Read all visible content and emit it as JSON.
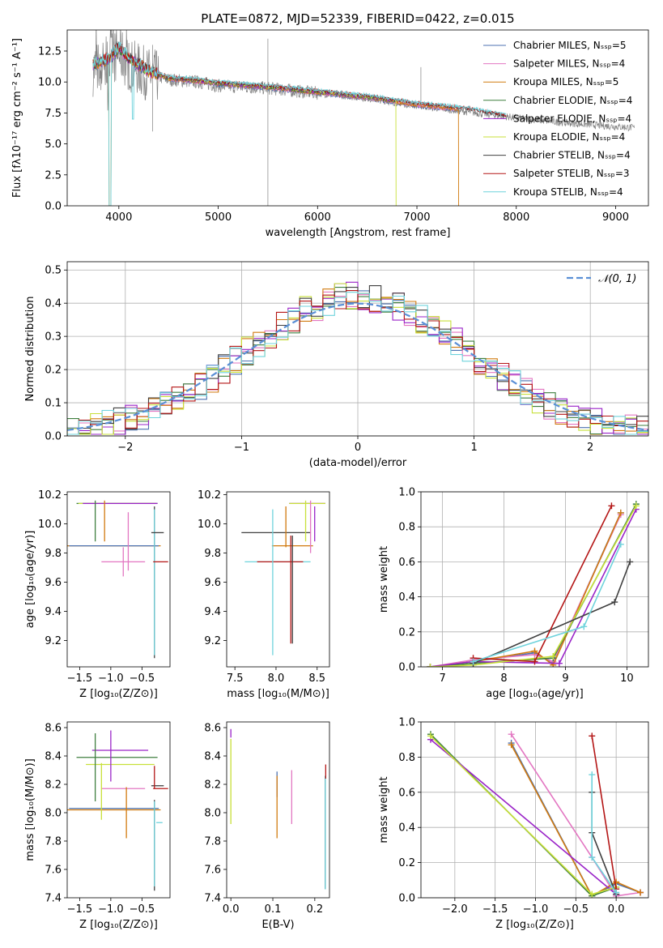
{
  "chart_data": [
    {
      "id": "spectrum",
      "type": "line",
      "title": "PLATE=0872, MJD=52339, FIBERID=0422, z=0.015",
      "xlabel": "wavelength [Angstrom, rest frame]",
      "ylabel": "Flux [fλ10⁻¹⁷ erg cm⁻² s⁻¹ A⁻¹]",
      "xlim": [
        3480,
        9330
      ],
      "ylim": [
        0,
        14.2
      ],
      "xticks": [
        "4000",
        "5000",
        "6000",
        "7000",
        "8000",
        "9000"
      ],
      "xtick_values": [
        4000,
        5000,
        6000,
        7000,
        8000,
        9000
      ],
      "yticks": [
        "0.0",
        "2.5",
        "5.0",
        "7.5",
        "10.0",
        "12.5"
      ],
      "ytick_values": [
        0,
        2.5,
        5,
        7.5,
        10,
        12.5
      ],
      "legend_position": "top-right",
      "data_color": "#808080",
      "data_trend": [
        [
          3740,
          11.0
        ],
        [
          3900,
          11.6
        ],
        [
          4000,
          12.4
        ],
        [
          4100,
          11.4
        ],
        [
          4300,
          10.6
        ],
        [
          4500,
          10.2
        ],
        [
          4800,
          10.0
        ],
        [
          5000,
          9.7
        ],
        [
          5500,
          9.5
        ],
        [
          6000,
          9.1
        ],
        [
          6500,
          8.7
        ],
        [
          7000,
          8.1
        ],
        [
          7500,
          7.6
        ],
        [
          8000,
          7.1
        ],
        [
          8500,
          6.7
        ],
        [
          9000,
          6.4
        ],
        [
          9190,
          6.3
        ]
      ],
      "model_trend": [
        [
          3740,
          11.4
        ],
        [
          3900,
          11.9
        ],
        [
          4000,
          12.8
        ],
        [
          4100,
          11.9
        ],
        [
          4300,
          10.9
        ],
        [
          4500,
          10.3
        ],
        [
          4800,
          10.1
        ],
        [
          5000,
          9.9
        ],
        [
          5500,
          9.6
        ],
        [
          6000,
          9.2
        ],
        [
          6500,
          8.8
        ],
        [
          7000,
          8.2
        ],
        [
          7500,
          7.8
        ],
        [
          7900,
          7.2
        ]
      ],
      "series": [
        {
          "name": "Chabrier MILES, Nₛₛₚ=5",
          "color": "#4c72b0",
          "end": 7400,
          "dip": null
        },
        {
          "name": "Salpeter MILES, Nₛₛₚ=4",
          "color": "#e377c2",
          "end": 7400,
          "dip": null
        },
        {
          "name": "Kroupa MILES, Nₛₛₚ=5",
          "color": "#d17a0f",
          "end": 7420,
          "dip": 7420
        },
        {
          "name": "Chabrier ELODIE, Nₛₛₚ=4",
          "color": "#3f7f3f",
          "end": 6790,
          "dip": null
        },
        {
          "name": "Salpeter ELODIE, Nₛₛₚ=4",
          "color": "#9a24c8",
          "end": 6790,
          "dip": null
        },
        {
          "name": "Kroupa ELODIE, Nₛₛₚ=4",
          "color": "#c8e03a",
          "end": 6790,
          "dip": 6790
        },
        {
          "name": "Chabrier STELIB, Nₛₛₚ=4",
          "color": "#404040",
          "end": 7900,
          "dip": null
        },
        {
          "name": "Salpeter STELIB, Nₛₛₚ=3",
          "color": "#b41616",
          "end": 7900,
          "dip": null
        },
        {
          "name": "Kroupa STELIB, Nₛₛₚ=4",
          "color": "#6fd3dc",
          "end": 7900,
          "dip": null
        }
      ]
    },
    {
      "id": "residuals",
      "type": "line",
      "xlabel": "(data-model)/error",
      "ylabel": "Normed distribution",
      "xlim": [
        -2.5,
        2.5
      ],
      "ylim": [
        0,
        0.525
      ],
      "xticks": [
        "−2",
        "−1",
        "0",
        "1",
        "2"
      ],
      "xtick_values": [
        -2,
        -1,
        0,
        1,
        2
      ],
      "yticks": [
        "0.0",
        "0.1",
        "0.2",
        "0.3",
        "0.4",
        "0.5"
      ],
      "ytick_values": [
        0,
        0.1,
        0.2,
        0.3,
        0.4,
        0.5
      ],
      "grid": true,
      "legend_position": "top-right",
      "gaussian_label": "𝒩(0, 1)",
      "gaussian_color": "#5a8fd6",
      "hist_bins": 50,
      "hist_colors": [
        "#4c72b0",
        "#e377c2",
        "#d17a0f",
        "#3f7f3f",
        "#9a24c8",
        "#c8e03a",
        "#404040",
        "#b41616",
        "#6fd3dc"
      ]
    },
    {
      "id": "age-vs-Z",
      "type": "scatter",
      "xlabel": "Z [log₁₀(Z/Z⊙)]",
      "ylabel": "age  [log₁₀(age/yr)]",
      "xlim": [
        -1.7,
        -0.05
      ],
      "ylim": [
        9.02,
        10.22
      ],
      "xticks": [
        "−1.5",
        "−1.0",
        "−0.5"
      ],
      "xtick_values": [
        -1.5,
        -1.0,
        -0.5
      ],
      "yticks": [
        "9.2",
        "9.4",
        "9.6",
        "9.8",
        "10.0",
        "10.2"
      ],
      "ytick_values": [
        9.2,
        9.4,
        9.6,
        9.8,
        10.0,
        10.2
      ],
      "points": [
        {
          "x": -0.9,
          "y": 10.14,
          "xerr": 0.65,
          "yerr": 0.0,
          "color": "#3f7f3f"
        },
        {
          "x": -0.9,
          "y": 10.14,
          "xerr": 0.62,
          "yerr": 0.0,
          "color": "#c8e03a"
        },
        {
          "x": -0.85,
          "y": 10.14,
          "xerr": 0.6,
          "yerr": 0.0,
          "color": "#9a24c8"
        },
        {
          "x": -0.95,
          "y": 9.85,
          "xerr": 0.75,
          "yerr": 0.0,
          "color": "#d17a0f"
        },
        {
          "x": -0.95,
          "y": 9.85,
          "xerr": 0.72,
          "yerr": 0.0,
          "color": "#4c72b0"
        },
        {
          "x": -0.8,
          "y": 9.74,
          "xerr": 0.35,
          "yerr": 0.1,
          "color": "#e377c2"
        },
        {
          "x": -0.3,
          "y": 9.6,
          "xerr": 0.0,
          "yerr": 0.52,
          "color": "#404040"
        },
        {
          "x": -0.3,
          "y": 9.6,
          "xerr": 0.0,
          "yerr": 0.5,
          "color": "#6fd3dc"
        },
        {
          "x": -0.25,
          "y": 9.94,
          "xerr": 0.1,
          "yerr": 0.0,
          "color": "#404040"
        },
        {
          "x": -0.2,
          "y": 9.74,
          "xerr": 0.12,
          "yerr": 0.0,
          "color": "#b41616"
        },
        {
          "x": -1.25,
          "y": 10.02,
          "xerr": 0.0,
          "yerr": 0.14,
          "color": "#3f7f3f"
        },
        {
          "x": -1.1,
          "y": 10.02,
          "xerr": 0.0,
          "yerr": 0.14,
          "color": "#d17a0f"
        },
        {
          "x": -0.72,
          "y": 9.88,
          "xerr": 0.0,
          "yerr": 0.2,
          "color": "#e377c2"
        }
      ]
    },
    {
      "id": "age-vs-mass",
      "type": "scatter",
      "xlabel": "mass [log₁₀(M/M⊙)]",
      "ylabel": "",
      "xlim": [
        7.4,
        8.65
      ],
      "ylim": [
        9.02,
        10.22
      ],
      "xticks": [
        "7.5",
        "8.0",
        "8.5"
      ],
      "xtick_values": [
        7.5,
        8.0,
        8.5
      ],
      "yticks": [
        "9.2",
        "9.4",
        "9.6",
        "9.8",
        "10.0",
        "10.2"
      ],
      "ytick_values": [
        9.2,
        9.4,
        9.6,
        9.8,
        10.0,
        10.2
      ],
      "points": [
        {
          "x": 8.0,
          "y": 9.94,
          "xerr": 0.42,
          "yerr": 0.0,
          "color": "#404040"
        },
        {
          "x": 8.2,
          "y": 9.85,
          "xerr": 0.25,
          "yerr": 0.0,
          "color": "#d17a0f"
        },
        {
          "x": 8.02,
          "y": 9.74,
          "xerr": 0.4,
          "yerr": 0.0,
          "color": "#6fd3dc"
        },
        {
          "x": 8.05,
          "y": 9.74,
          "xerr": 0.28,
          "yerr": 0.0,
          "color": "#b41616"
        },
        {
          "x": 8.38,
          "y": 10.14,
          "xerr": 0.22,
          "yerr": 0.0,
          "color": "#9a24c8"
        },
        {
          "x": 8.38,
          "y": 10.14,
          "xerr": 0.22,
          "yerr": 0.0,
          "color": "#c8e03a"
        },
        {
          "x": 8.18,
          "y": 9.55,
          "xerr": 0.0,
          "yerr": 0.37,
          "color": "#b41616"
        },
        {
          "x": 8.2,
          "y": 9.55,
          "xerr": 0.0,
          "yerr": 0.37,
          "color": "#404040"
        },
        {
          "x": 7.96,
          "y": 9.6,
          "xerr": 0.0,
          "yerr": 0.5,
          "color": "#6fd3dc"
        },
        {
          "x": 8.12,
          "y": 9.98,
          "xerr": 0.0,
          "yerr": 0.14,
          "color": "#d17a0f"
        },
        {
          "x": 8.36,
          "y": 10.02,
          "xerr": 0.0,
          "yerr": 0.14,
          "color": "#c8e03a"
        },
        {
          "x": 8.47,
          "y": 10.0,
          "xerr": 0.0,
          "yerr": 0.12,
          "color": "#9a24c8"
        },
        {
          "x": 8.42,
          "y": 9.98,
          "xerr": 0.0,
          "yerr": 0.18,
          "color": "#e377c2"
        }
      ]
    },
    {
      "id": "massweight-vs-age",
      "type": "line",
      "xlabel": "age  [log₁₀(age/yr)]",
      "ylabel": "mass weight",
      "xlim": [
        6.65,
        10.35
      ],
      "ylim": [
        0,
        1.0
      ],
      "xticks": [
        "7",
        "8",
        "9",
        "10"
      ],
      "xtick_values": [
        7,
        8,
        9,
        10
      ],
      "yticks": [
        "0.0",
        "0.2",
        "0.4",
        "0.6",
        "0.8",
        "1.0"
      ],
      "ytick_values": [
        0,
        0.2,
        0.4,
        0.6,
        0.8,
        1.0
      ],
      "grid": true,
      "series": [
        {
          "color": "#4c72b0",
          "x": [
            6.8,
            7.5,
            8.5,
            8.8,
            9.9
          ],
          "y": [
            0.0,
            0.03,
            0.08,
            0.02,
            0.88
          ]
        },
        {
          "color": "#e377c2",
          "x": [
            6.8,
            7.5,
            8.5,
            8.8,
            9.9
          ],
          "y": [
            0.0,
            0.04,
            0.07,
            0.03,
            0.87
          ]
        },
        {
          "color": "#d17a0f",
          "x": [
            6.8,
            7.5,
            8.5,
            8.8,
            9.9
          ],
          "y": [
            0.0,
            0.03,
            0.09,
            0.01,
            0.88
          ]
        },
        {
          "color": "#3f7f3f",
          "x": [
            6.8,
            7.5,
            8.8,
            10.15
          ],
          "y": [
            0.0,
            0.02,
            0.05,
            0.93
          ]
        },
        {
          "color": "#9a24c8",
          "x": [
            6.8,
            7.5,
            8.9,
            10.15
          ],
          "y": [
            0.0,
            0.03,
            0.02,
            0.9
          ]
        },
        {
          "color": "#c8e03a",
          "x": [
            6.8,
            7.5,
            8.8,
            10.15
          ],
          "y": [
            0.0,
            0.01,
            0.06,
            0.92
          ]
        },
        {
          "color": "#404040",
          "x": [
            7.5,
            9.8,
            10.05
          ],
          "y": [
            0.02,
            0.37,
            0.6
          ]
        },
        {
          "color": "#b41616",
          "x": [
            7.5,
            8.5,
            9.75
          ],
          "y": [
            0.05,
            0.03,
            0.92
          ]
        },
        {
          "color": "#6fd3dc",
          "x": [
            7.5,
            9.3,
            9.9
          ],
          "y": [
            0.03,
            0.23,
            0.7
          ]
        }
      ]
    },
    {
      "id": "mass-vs-Z",
      "type": "scatter",
      "xlabel": "Z [log₁₀(Z/Z⊙)]",
      "ylabel": "mass [log₁₀(M/M⊙)]",
      "xlim": [
        -1.7,
        -0.05
      ],
      "ylim": [
        7.4,
        8.64
      ],
      "xticks": [
        "−1.5",
        "−1.0",
        "−0.5"
      ],
      "xtick_values": [
        -1.5,
        -1.0,
        -0.5
      ],
      "yticks": [
        "7.4",
        "7.6",
        "7.8",
        "8.0",
        "8.2",
        "8.4",
        "8.6"
      ],
      "ytick_values": [
        7.4,
        7.6,
        7.8,
        8.0,
        8.2,
        8.4,
        8.6
      ],
      "points": [
        {
          "x": -0.95,
          "y": 8.03,
          "xerr": 0.72,
          "yerr": 0.0,
          "color": "#4c72b0"
        },
        {
          "x": -0.95,
          "y": 8.02,
          "xerr": 0.75,
          "yerr": 0.0,
          "color": "#d17a0f"
        },
        {
          "x": -0.9,
          "y": 8.39,
          "xerr": 0.65,
          "yerr": 0.0,
          "color": "#3f7f3f"
        },
        {
          "x": -0.85,
          "y": 8.44,
          "xerr": 0.45,
          "yerr": 0.0,
          "color": "#9a24c8"
        },
        {
          "x": -0.85,
          "y": 8.34,
          "xerr": 0.55,
          "yerr": 0.0,
          "color": "#c8e03a"
        },
        {
          "x": -0.8,
          "y": 8.17,
          "xerr": 0.35,
          "yerr": 0.0,
          "color": "#e377c2"
        },
        {
          "x": -0.25,
          "y": 8.19,
          "xerr": 0.1,
          "yerr": 0.0,
          "color": "#404040"
        },
        {
          "x": -0.2,
          "y": 8.17,
          "xerr": 0.12,
          "yerr": 0.0,
          "color": "#b41616"
        },
        {
          "x": -0.3,
          "y": 7.77,
          "xerr": 0.0,
          "yerr": 0.32,
          "color": "#404040"
        },
        {
          "x": -0.3,
          "y": 7.78,
          "xerr": 0.0,
          "yerr": 0.3,
          "color": "#6fd3dc"
        },
        {
          "x": -0.3,
          "y": 8.25,
          "xerr": 0.0,
          "yerr": 0.08,
          "color": "#b41616"
        },
        {
          "x": -1.25,
          "y": 8.32,
          "xerr": 0.0,
          "yerr": 0.24,
          "color": "#3f7f3f"
        },
        {
          "x": -1.0,
          "y": 8.4,
          "xerr": 0.0,
          "yerr": 0.18,
          "color": "#9a24c8"
        },
        {
          "x": -0.75,
          "y": 8.0,
          "xerr": 0.0,
          "yerr": 0.18,
          "color": "#d17a0f"
        },
        {
          "x": -1.15,
          "y": 8.15,
          "xerr": 0.0,
          "yerr": 0.2,
          "color": "#c8e03a"
        },
        {
          "x": -0.22,
          "y": 7.93,
          "xerr": 0.05,
          "yerr": 0.0,
          "color": "#6fd3dc"
        }
      ]
    },
    {
      "id": "mass-vs-EBV",
      "type": "scatter",
      "xlabel": "E(B-V)",
      "ylabel": "",
      "xlim": [
        -0.01,
        0.235
      ],
      "ylim": [
        7.4,
        8.64
      ],
      "xticks": [
        "0.0",
        "0.1",
        "0.2"
      ],
      "xtick_values": [
        0,
        0.1,
        0.2
      ],
      "yticks": [
        "7.4",
        "7.6",
        "7.8",
        "8.0",
        "8.2",
        "8.4",
        "8.6"
      ],
      "ytick_values": [
        7.4,
        7.6,
        7.8,
        8.0,
        8.2,
        8.4,
        8.6
      ],
      "points": [
        {
          "x": 0.0,
          "y": 8.56,
          "xerr": 0.0,
          "yerr": 0.03,
          "color": "#9a24c8"
        },
        {
          "x": 0.0,
          "y": 8.22,
          "xerr": 0.0,
          "yerr": 0.3,
          "color": "#c8e03a"
        },
        {
          "x": 0.11,
          "y": 8.2,
          "xerr": 0.0,
          "yerr": 0.09,
          "color": "#4c72b0"
        },
        {
          "x": 0.11,
          "y": 8.04,
          "xerr": 0.0,
          "yerr": 0.22,
          "color": "#d17a0f"
        },
        {
          "x": 0.145,
          "y": 8.11,
          "xerr": 0.0,
          "yerr": 0.19,
          "color": "#e377c2"
        },
        {
          "x": 0.225,
          "y": 7.86,
          "xerr": 0.0,
          "yerr": 0.4,
          "color": "#404040"
        },
        {
          "x": 0.225,
          "y": 7.86,
          "xerr": 0.0,
          "yerr": 0.4,
          "color": "#6fd3dc"
        },
        {
          "x": 0.226,
          "y": 8.29,
          "xerr": 0.0,
          "yerr": 0.05,
          "color": "#b41616"
        }
      ]
    },
    {
      "id": "massweight-vs-Z",
      "type": "line",
      "xlabel": "Z [log₁₀(Z/Z⊙)]",
      "ylabel": "mass weight",
      "xlim": [
        -2.42,
        0.4
      ],
      "ylim": [
        0,
        1.0
      ],
      "xticks": [
        "−2.0",
        "−1.5",
        "−1.0",
        "−0.5",
        "0.0"
      ],
      "xtick_values": [
        -2.0,
        -1.5,
        -1.0,
        -0.5,
        0.0
      ],
      "yticks": [
        "0.0",
        "0.2",
        "0.4",
        "0.6",
        "0.8",
        "1.0"
      ],
      "ytick_values": [
        0,
        0.2,
        0.4,
        0.6,
        0.8,
        1.0
      ],
      "grid": true,
      "series": [
        {
          "color": "#4c72b0",
          "x": [
            -1.3,
            -0.3,
            0.0,
            0.3
          ],
          "y": [
            0.88,
            0.01,
            0.08,
            0.03
          ]
        },
        {
          "color": "#e377c2",
          "x": [
            -1.3,
            -0.3,
            0.0,
            0.3
          ],
          "y": [
            0.93,
            0.23,
            0.01,
            0.03
          ]
        },
        {
          "color": "#d17a0f",
          "x": [
            -1.3,
            -0.3,
            0.0,
            0.3
          ],
          "y": [
            0.87,
            0.01,
            0.09,
            0.03
          ]
        },
        {
          "color": "#3f7f3f",
          "x": [
            -2.3,
            -0.3,
            0.0
          ],
          "y": [
            0.93,
            0.01,
            0.06
          ]
        },
        {
          "color": "#9a24c8",
          "x": [
            -2.3,
            0.0
          ],
          "y": [
            0.9,
            0.02
          ]
        },
        {
          "color": "#c8e03a",
          "x": [
            -2.3,
            -0.3,
            0.0
          ],
          "y": [
            0.92,
            0.02,
            0.06
          ]
        },
        {
          "color": "#404040",
          "x": [
            -0.3,
            -0.3,
            0.0
          ],
          "y": [
            0.6,
            0.37,
            0.02
          ]
        },
        {
          "color": "#b41616",
          "x": [
            -0.3,
            0.0
          ],
          "y": [
            0.92,
            0.05
          ]
        },
        {
          "color": "#6fd3dc",
          "x": [
            -0.3,
            -0.3,
            0.0
          ],
          "y": [
            0.7,
            0.23,
            0.03
          ]
        }
      ]
    }
  ]
}
